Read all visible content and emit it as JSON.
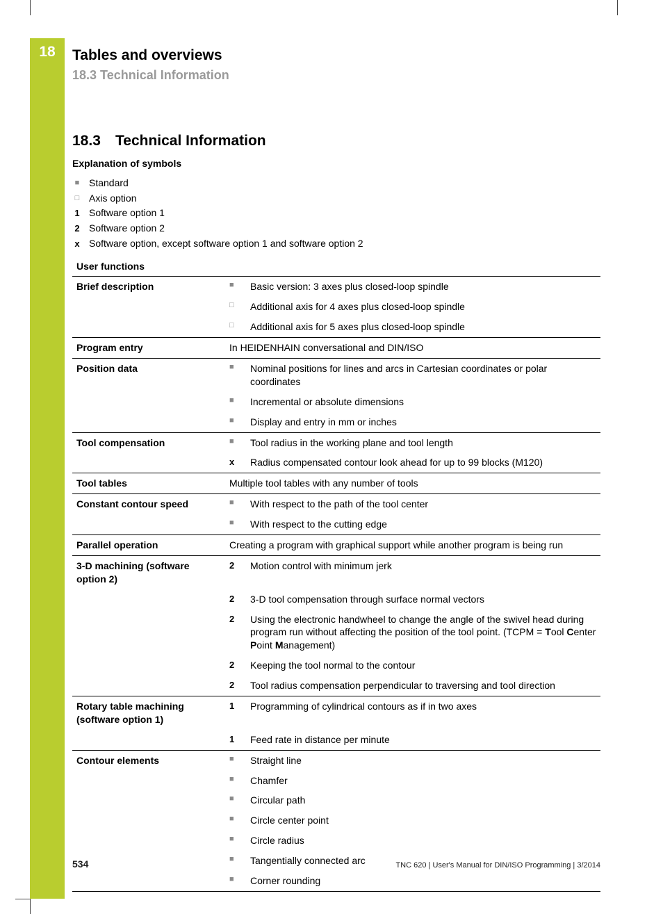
{
  "chapter_number": "18",
  "chapter_title": "Tables and overviews",
  "section_top": "18.3   Technical Information",
  "section_num": "18.3",
  "section_title": "Technical Information",
  "explanation_heading": "Explanation of symbols",
  "symbols": [
    {
      "mark": "■",
      "bold": false,
      "text": "Standard"
    },
    {
      "mark": "□",
      "bold": false,
      "text": "Axis option"
    },
    {
      "mark": "1",
      "bold": true,
      "text": "Software option 1"
    },
    {
      "mark": "2",
      "bold": true,
      "text": "Software option 2"
    },
    {
      "mark": "x",
      "bold": true,
      "text": "Software option, except software option 1 and software option 2"
    }
  ],
  "table_title": "User functions",
  "rows": [
    {
      "sep": true,
      "label": "Brief description",
      "mark": "■",
      "mbold": false,
      "desc": "Basic version: 3 axes plus closed-loop spindle"
    },
    {
      "sep": false,
      "label": "",
      "mark": "□",
      "mbold": false,
      "desc": "Additional axis for 4 axes plus closed-loop spindle"
    },
    {
      "sep": false,
      "label": "",
      "mark": "□",
      "mbold": false,
      "desc": "Additional axis for 5 axes plus closed-loop spindle"
    },
    {
      "sep": true,
      "label": "Program entry",
      "full": true,
      "desc": "In HEIDENHAIN conversational  and DIN/ISO"
    },
    {
      "sep": true,
      "label": "Position data",
      "mark": "■",
      "mbold": false,
      "desc": "Nominal positions for lines and arcs in Cartesian coordinates or polar coordinates"
    },
    {
      "sep": false,
      "label": "",
      "mark": "■",
      "mbold": false,
      "desc": "Incremental or absolute dimensions"
    },
    {
      "sep": false,
      "label": "",
      "mark": "■",
      "mbold": false,
      "desc": "Display and entry in mm or inches"
    },
    {
      "sep": true,
      "label": "Tool compensation",
      "mark": "■",
      "mbold": false,
      "desc": "Tool radius in the working plane and tool length"
    },
    {
      "sep": false,
      "label": "",
      "mark": "x",
      "mbold": true,
      "desc": "Radius compensated contour look ahead for up to 99 blocks (M120)"
    },
    {
      "sep": true,
      "label": "Tool tables",
      "full": true,
      "desc": "Multiple tool tables with any number of tools"
    },
    {
      "sep": true,
      "label": "Constant contour speed",
      "mark": "■",
      "mbold": false,
      "desc": "With respect to the path of the tool center"
    },
    {
      "sep": false,
      "label": "",
      "mark": "■",
      "mbold": false,
      "desc": "With respect to the cutting edge"
    },
    {
      "sep": true,
      "label": "Parallel operation",
      "full": true,
      "desc": "Creating a program with graphical support while another program is being run"
    },
    {
      "sep": true,
      "label": "3-D machining (software option 2)",
      "mark": "2",
      "mbold": true,
      "desc": "Motion control with minimum jerk"
    },
    {
      "sep": false,
      "label": "",
      "mark": "2",
      "mbold": true,
      "desc": "3-D tool compensation through surface normal vectors"
    },
    {
      "sep": false,
      "label": "",
      "mark": "2",
      "mbold": true,
      "html": true,
      "desc": "Using the electronic handwheel to change the angle of the swivel head during program run without affecting the position of the tool point. (TCPM = <b>T</b>ool <b>C</b>enter <b>P</b>oint <b>M</b>anagement)"
    },
    {
      "sep": false,
      "label": "",
      "mark": "2",
      "mbold": true,
      "desc": "Keeping the tool normal to the contour"
    },
    {
      "sep": false,
      "label": "",
      "mark": "2",
      "mbold": true,
      "desc": "Tool radius compensation perpendicular to traversing and tool direction"
    },
    {
      "sep": true,
      "label": "Rotary table machining (software option 1)",
      "mark": "1",
      "mbold": true,
      "desc": "Programming of cylindrical contours as if in two axes"
    },
    {
      "sep": false,
      "label": "",
      "mark": "1",
      "mbold": true,
      "desc": "Feed rate in distance per minute"
    },
    {
      "sep": true,
      "label": "Contour elements",
      "mark": "■",
      "mbold": false,
      "desc": "Straight line"
    },
    {
      "sep": false,
      "label": "",
      "mark": "■",
      "mbold": false,
      "desc": "Chamfer"
    },
    {
      "sep": false,
      "label": "",
      "mark": "■",
      "mbold": false,
      "desc": "Circular path"
    },
    {
      "sep": false,
      "label": "",
      "mark": "■",
      "mbold": false,
      "desc": "Circle center point"
    },
    {
      "sep": false,
      "label": "",
      "mark": "■",
      "mbold": false,
      "desc": "Circle radius"
    },
    {
      "sep": false,
      "label": "",
      "mark": "■",
      "mbold": false,
      "desc": "Tangentially connected arc"
    },
    {
      "sep": false,
      "label": "",
      "mark": "■",
      "mbold": false,
      "desc": "Corner rounding",
      "last": true
    }
  ],
  "page_number": "534",
  "footer_text": "TNC 620 | User's Manual for DIN/ISO Programming | 3/2014",
  "colors": {
    "accent": "#b9cd2f",
    "grey_text": "#9a9a9a",
    "mark_grey": "#8a8a8a"
  }
}
